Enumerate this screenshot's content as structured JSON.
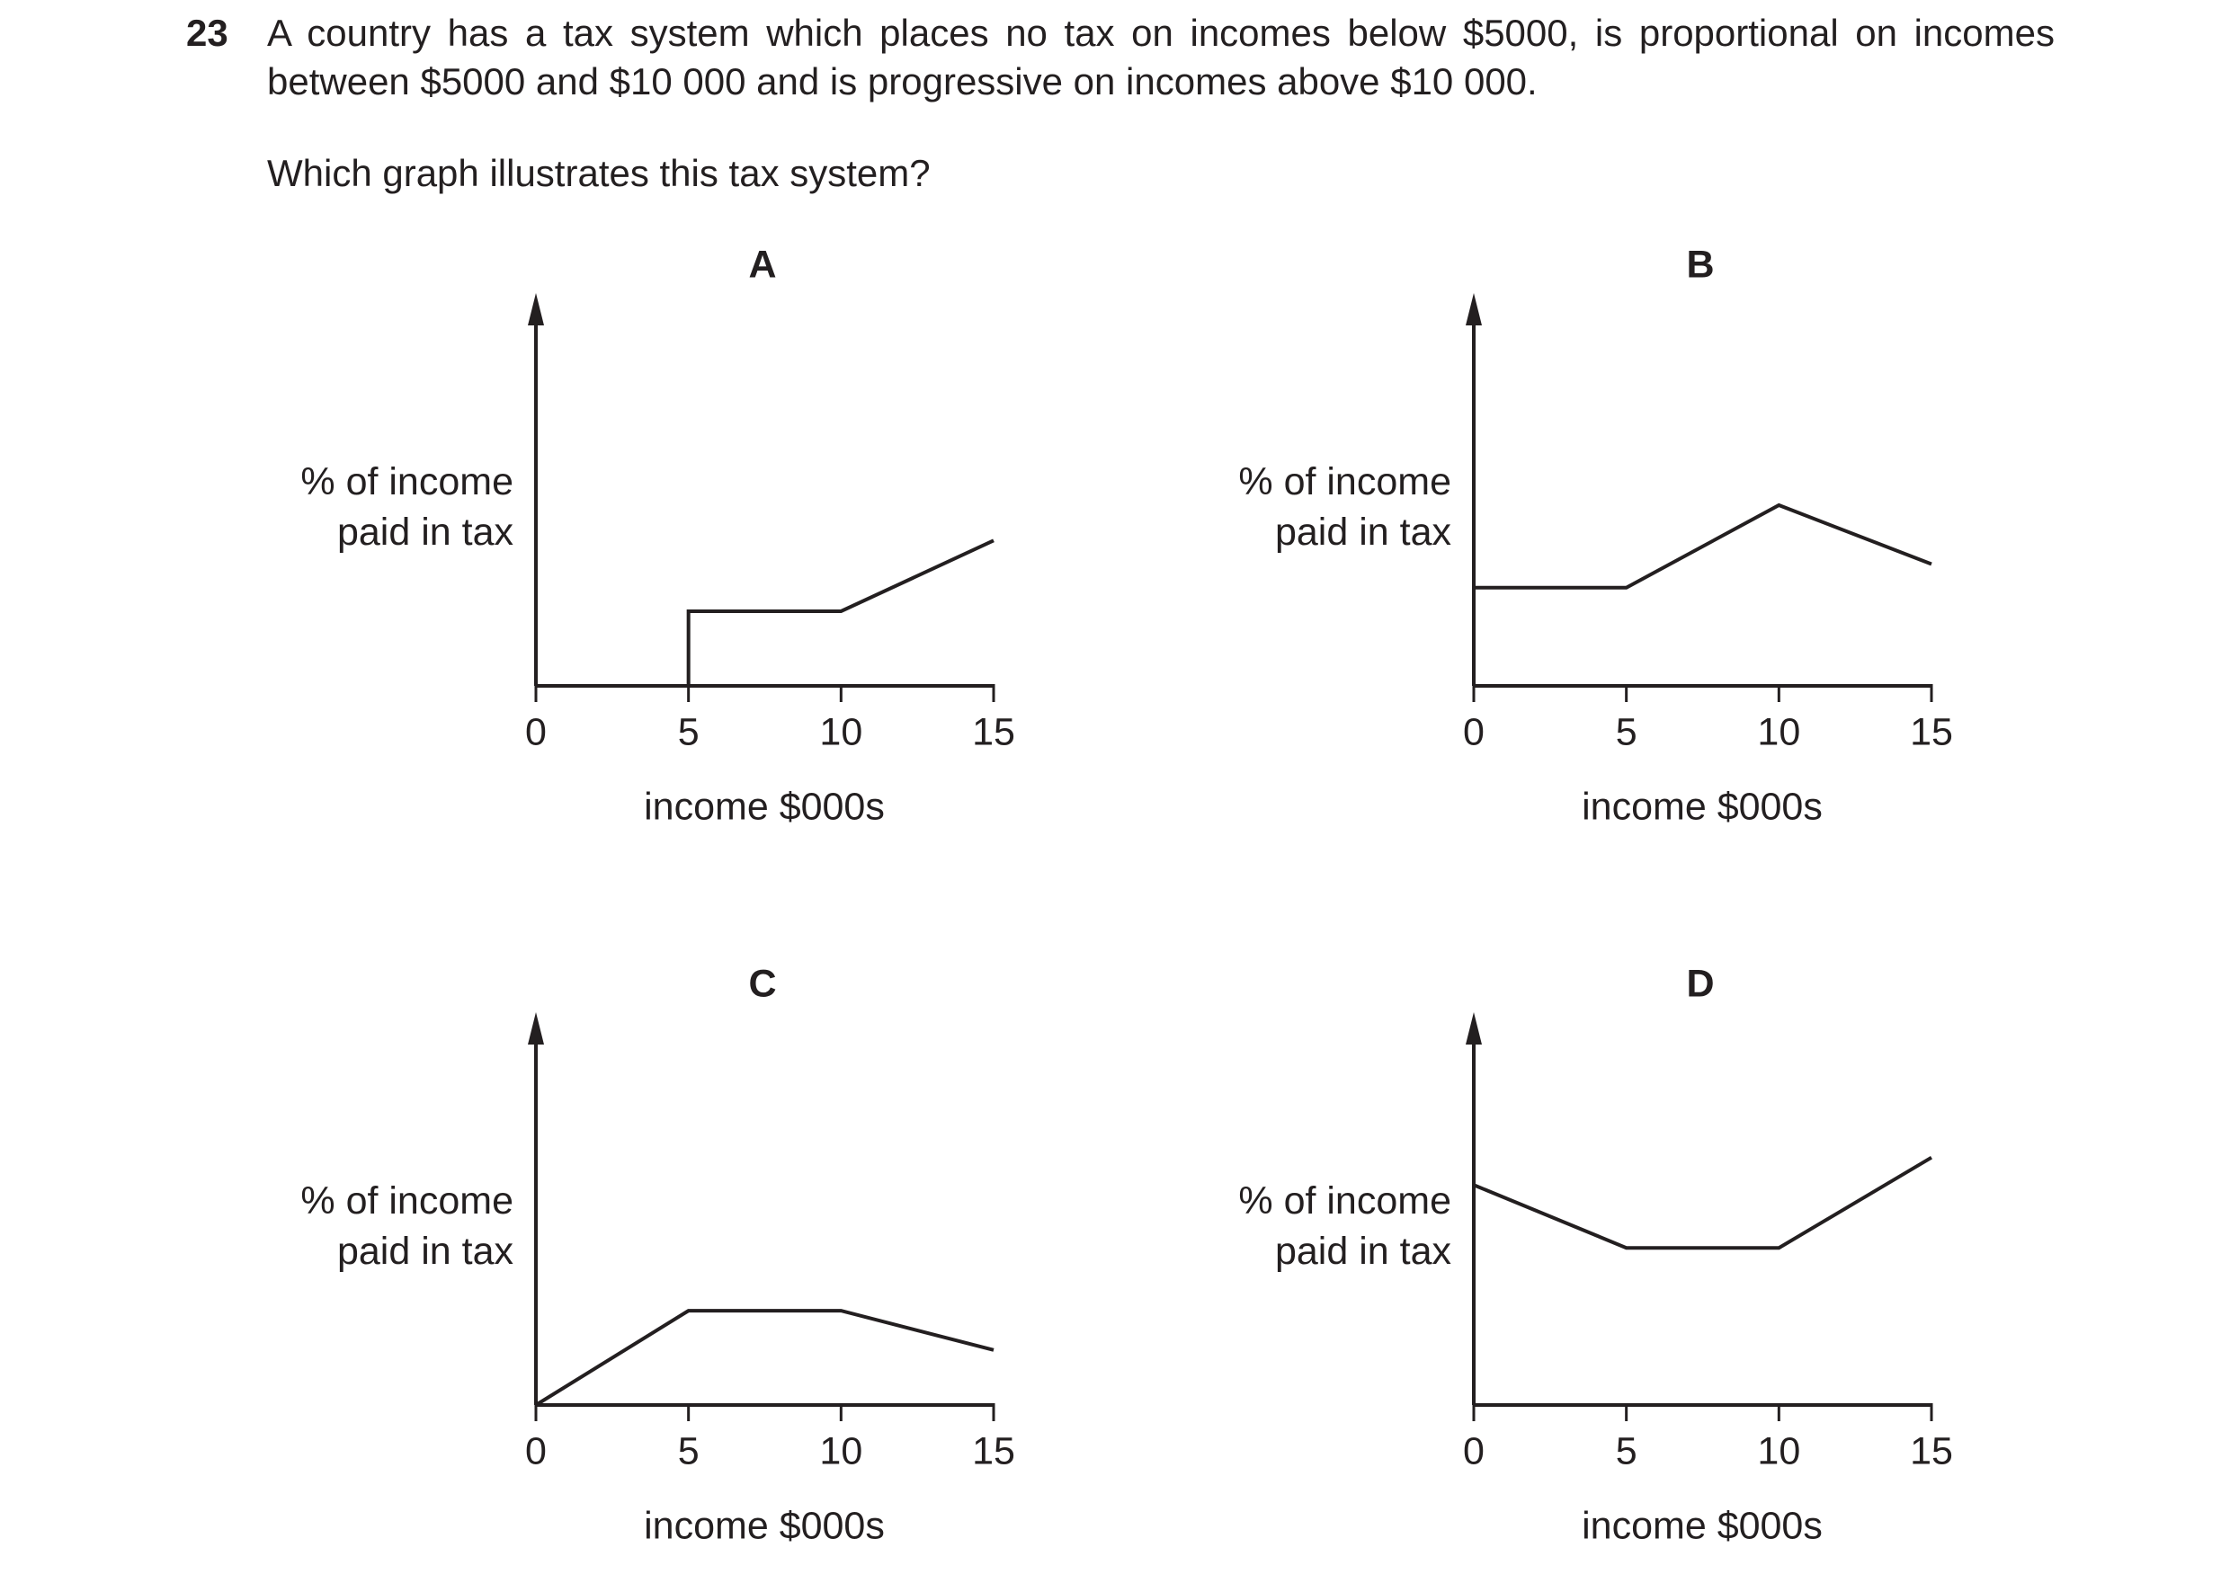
{
  "question": {
    "number": "23",
    "text": "A country has a tax system which places no tax on incomes below $5000, is proportional on incomes between $5000 and $10 000 and is progressive on incomes above $10 000.",
    "prompt": "Which graph illustrates this tax system?"
  },
  "chart_data": [
    {
      "type": "line",
      "title": "A",
      "x_label": "income $000s",
      "y_label": "% of income paid in tax",
      "x": [
        0,
        5,
        5,
        10,
        15
      ],
      "values": [
        0,
        0,
        1.9,
        1.9,
        3.7
      ],
      "color": "#231f20",
      "xlim": [
        0,
        15
      ],
      "xticks": [
        0,
        5,
        10,
        15
      ],
      "ylim": [
        0,
        10
      ]
    },
    {
      "type": "line",
      "title": "B",
      "x_label": "income $000s",
      "y_label": "% of income paid in tax",
      "x": [
        0,
        5,
        10,
        15
      ],
      "values": [
        2.5,
        2.5,
        4.6,
        3.1
      ],
      "color": "#231f20",
      "xlim": [
        0,
        15
      ],
      "xticks": [
        0,
        5,
        10,
        15
      ],
      "ylim": [
        0,
        10
      ]
    },
    {
      "type": "line",
      "title": "C",
      "x_label": "income $000s",
      "y_label": "% of income paid in tax",
      "x": [
        0,
        5,
        10,
        15
      ],
      "values": [
        0,
        2.4,
        2.4,
        1.4
      ],
      "color": "#231f20",
      "xlim": [
        0,
        15
      ],
      "xticks": [
        0,
        5,
        10,
        15
      ],
      "ylim": [
        0,
        10
      ]
    },
    {
      "type": "line",
      "title": "D",
      "x_label": "income $000s",
      "y_label": "% of income paid in tax",
      "x": [
        0,
        5,
        10,
        15
      ],
      "values": [
        5.6,
        4.0,
        4.0,
        6.3
      ],
      "color": "#231f20",
      "xlim": [
        0,
        15
      ],
      "xticks": [
        0,
        5,
        10,
        15
      ],
      "ylim": [
        0,
        10
      ]
    }
  ]
}
